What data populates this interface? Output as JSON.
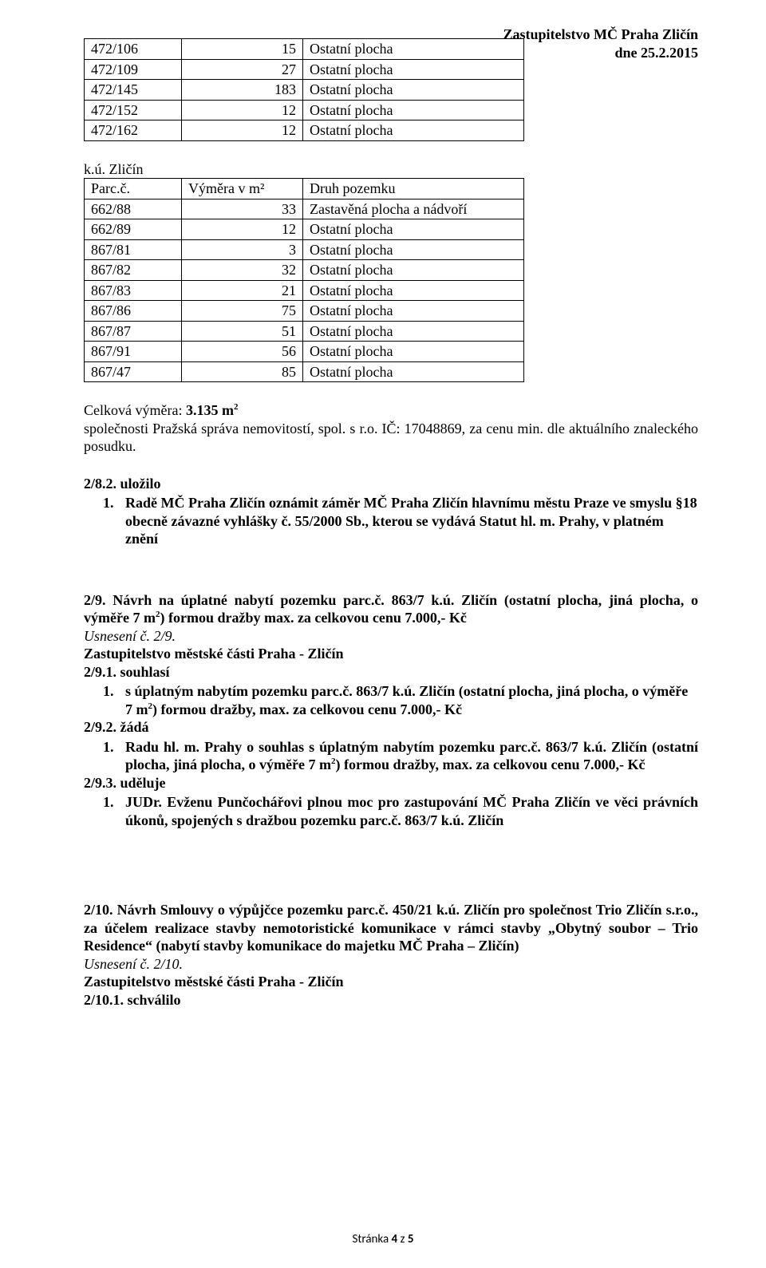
{
  "header": {
    "line1": "Zastupitelstvo MČ Praha Zličín",
    "line2": "dne 25.2.2015"
  },
  "table1": {
    "rows": [
      [
        "472/106",
        "15",
        "Ostatní plocha"
      ],
      [
        "472/109",
        "27",
        "Ostatní plocha"
      ],
      [
        "472/145",
        "183",
        "Ostatní plocha"
      ],
      [
        "472/152",
        "12",
        "Ostatní plocha"
      ],
      [
        "472/162",
        "12",
        "Ostatní plocha"
      ]
    ]
  },
  "table2": {
    "intro": "k.ú. Zličín",
    "header": [
      "Parc.č.",
      "Výměra v m²",
      "Druh pozemku"
    ],
    "rows": [
      [
        "662/88",
        "33",
        "Zastavěná plocha a nádvoří"
      ],
      [
        "662/89",
        "12",
        "Ostatní plocha"
      ],
      [
        "867/81",
        "3",
        "Ostatní plocha"
      ],
      [
        "867/82",
        "32",
        "Ostatní plocha"
      ],
      [
        "867/83",
        "21",
        "Ostatní plocha"
      ],
      [
        "867/86",
        "75",
        "Ostatní plocha"
      ],
      [
        "867/87",
        "51",
        "Ostatní plocha"
      ],
      [
        "867/91",
        "56",
        "Ostatní plocha"
      ],
      [
        "867/47",
        "85",
        "Ostatní plocha"
      ]
    ]
  },
  "celkova": {
    "label_pre": "Celková výměra: ",
    "label_bold": "3.135 m",
    "text": "společnosti Pražská správa nemovitostí, spol. s r.o. IČ: 17048869, za cenu min. dle aktuálního znaleckého posudku."
  },
  "sec2_8": {
    "head": "2/8.2. uložilo",
    "item_num": "1.",
    "item_text": "Radě MČ Praha Zličín oznámit záměr MČ Praha Zličín hlavnímu městu Praze ve smyslu §18 obecně závazné vyhlášky č. 55/2000 Sb., kterou se vydává Statut hl. m. Prahy, v platném znění"
  },
  "sec2_9": {
    "title_pre": "2/9. Návrh na úplatné nabytí pozemku parc.č. 863/7 k.ú. Zličín (ostatní plocha, jiná plocha, o výměře 7 m",
    "title_post": ") formou dražby max. za celkovou cenu 7.000,- Kč",
    "usneseni": "Usnesení č. 2/9.",
    "zastupitelstvo": "Zastupitelstvo městské části Praha - Zličín",
    "h1": "2/9.1. souhlasí",
    "i1_num": "1.",
    "i1_pre": "s úplatným nabytím pozemku parc.č. 863/7 k.ú. Zličín (ostatní plocha, jiná plocha,  o výměře 7 m",
    "i1_post": ") formou dražby,  max. za celkovou cenu 7.000,- Kč",
    "h2": "2/9.2. žádá",
    "i2_num": "1.",
    "i2_pre_bold": "Radu hl. m. Prahy o souhlas s úplatným nabytím pozemku parc.č. 863/7 k.ú. Zličín (ostatní plocha, jiná plocha,  o výměře 7 m",
    "i2_post_bold": ") formou dražby,  max. za celkovou cenu 7.000,- Kč",
    "h3": "2/9.3. uděluje",
    "i3_num": "1.",
    "i3_text": "JUDr. Evženu Punčochářovi plnou moc pro zastupování MČ Praha Zličín ve věci právních úkonů, spojených s dražbou pozemku parc.č. 863/7 k.ú. Zličín"
  },
  "sec2_10": {
    "title": "2/10. Návrh Smlouvy o výpůjčce  pozemku parc.č. 450/21 k.ú. Zličín pro společnost Trio Zličín s.r.o.,  za účelem realizace stavby nemotoristické komunikace v rámci stavby „Obytný soubor – Trio Residence“ (nabytí stavby komunikace do majetku MČ Praha – Zličín)",
    "usneseni": "Usnesení č. 2/10.",
    "zastupitelstvo": "Zastupitelstvo městské části Praha - Zličín",
    "h1": "2/10.1. schválilo"
  },
  "footer": {
    "text_pre": "Stránka ",
    "page": "4",
    "text_mid": " z ",
    "total": "5"
  }
}
